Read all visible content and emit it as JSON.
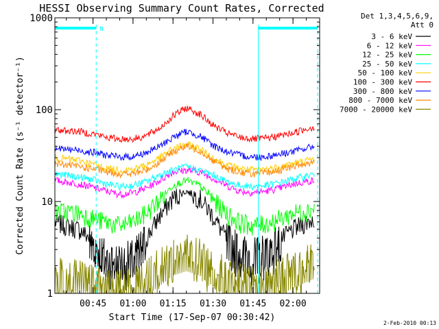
{
  "chart_data": {
    "type": "line",
    "title": "HESSI Observing Summary Count Rates, Corrected",
    "xlabel": "Start Time (17-Sep-07 00:30:42)",
    "ylabel": "Corrected Count Rate (s⁻¹ detector⁻¹)",
    "x_ticks": [
      "00:45",
      "01:00",
      "01:15",
      "01:30",
      "01:45",
      "02:00"
    ],
    "x_tick_minutes": [
      45,
      60,
      75,
      90,
      105,
      120
    ],
    "xlim_minutes": [
      30.7,
      130
    ],
    "y_scale": "log",
    "ylim": [
      1,
      1000
    ],
    "y_ticks": [
      "1",
      "10",
      "100",
      "1000"
    ],
    "y_tick_values": [
      1,
      10,
      100,
      1000
    ],
    "legend_header": [
      "Det 1,3,4,5,6,9,",
      "Att 0"
    ],
    "legend_position": "right",
    "series": [
      {
        "name": "3 - 6 keV",
        "color": "#000000",
        "x": [
          30.7,
          40,
          46,
          50,
          55,
          60,
          65,
          70,
          75,
          80,
          85,
          90,
          95,
          100,
          105,
          110,
          115,
          120,
          125,
          128
        ],
        "y": [
          6,
          5,
          3.5,
          2.5,
          2.3,
          2.5,
          4,
          7,
          11,
          13,
          11,
          7,
          4,
          3,
          2.6,
          3,
          3.8,
          5,
          6,
          6.5
        ]
      },
      {
        "name": "6 - 12 keV",
        "color": "#ff00ff",
        "x": [
          30.7,
          40,
          46,
          50,
          55,
          60,
          65,
          70,
          75,
          80,
          85,
          90,
          95,
          100,
          105,
          110,
          115,
          120,
          125,
          128
        ],
        "y": [
          17,
          15.5,
          14,
          13,
          12,
          12.5,
          14,
          17,
          21,
          22,
          21,
          18,
          15,
          13,
          12.5,
          13,
          14,
          15.5,
          16.5,
          17
        ]
      },
      {
        "name": "12 - 25 keV",
        "color": "#00ff00",
        "x": [
          30.7,
          40,
          46,
          50,
          55,
          60,
          65,
          70,
          75,
          80,
          85,
          90,
          95,
          100,
          105,
          110,
          115,
          120,
          125,
          128
        ],
        "y": [
          8,
          7.5,
          6.5,
          6,
          5.5,
          6,
          7.5,
          10.5,
          15,
          17,
          15,
          10.5,
          7.5,
          6,
          5.5,
          5.8,
          6.5,
          7.5,
          8,
          8.5
        ]
      },
      {
        "name": "25 - 50 keV",
        "color": "#00ffff",
        "x": [
          30.7,
          40,
          46,
          50,
          55,
          60,
          65,
          70,
          75,
          80,
          85,
          90,
          95,
          100,
          105,
          110,
          115,
          120,
          125,
          128
        ],
        "y": [
          20,
          18.5,
          17,
          15.5,
          14.5,
          15,
          16.5,
          19.5,
          22,
          24,
          22,
          19.5,
          16.5,
          15,
          14.5,
          15,
          16,
          17.5,
          19,
          20
        ]
      },
      {
        "name": "50 - 100 keV",
        "color": "#ffcc00",
        "x": [
          30.7,
          40,
          46,
          50,
          55,
          60,
          65,
          70,
          75,
          80,
          85,
          90,
          95,
          100,
          105,
          110,
          115,
          120,
          125,
          128
        ],
        "y": [
          30,
          28,
          25,
          23,
          22,
          22.5,
          25,
          30,
          38,
          42,
          38,
          30,
          25,
          23,
          22,
          22.5,
          24,
          26,
          28,
          29
        ]
      },
      {
        "name": "100 - 300 keV",
        "color": "#ff0000",
        "x": [
          30.7,
          40,
          46,
          50,
          55,
          60,
          65,
          70,
          75,
          80,
          85,
          90,
          95,
          100,
          105,
          110,
          115,
          120,
          125,
          128
        ],
        "y": [
          60,
          58,
          54,
          50,
          48,
          48,
          52,
          63,
          85,
          105,
          90,
          68,
          56,
          50,
          48,
          49,
          52,
          56,
          62,
          65
        ]
      },
      {
        "name": "300 - 800 keV",
        "color": "#0000ff",
        "x": [
          30.7,
          40,
          46,
          50,
          55,
          60,
          65,
          70,
          75,
          80,
          85,
          90,
          95,
          100,
          105,
          110,
          115,
          120,
          125,
          128
        ],
        "y": [
          38,
          36,
          34,
          32,
          30.5,
          31,
          34,
          40,
          50,
          58,
          52,
          41,
          35,
          32,
          30.5,
          31,
          33,
          35,
          38,
          40
        ]
      },
      {
        "name": "800 - 7000 keV",
        "color": "#ff8800",
        "x": [
          30.7,
          40,
          46,
          50,
          55,
          60,
          65,
          70,
          75,
          80,
          85,
          90,
          95,
          100,
          105,
          110,
          115,
          120,
          125,
          128
        ],
        "y": [
          26,
          24,
          22.5,
          21,
          20,
          20,
          22,
          27,
          35,
          40,
          36,
          28,
          23,
          21,
          20,
          20.5,
          22,
          24,
          26,
          27
        ]
      },
      {
        "name": "7000 - 20000 keV",
        "color": "#888800",
        "x": [
          30.7,
          40,
          46,
          50,
          55,
          60,
          65,
          70,
          75,
          80,
          85,
          90,
          95,
          100,
          105,
          110,
          115,
          120,
          125,
          128
        ],
        "y": [
          1.6,
          1.5,
          1.3,
          1.2,
          1.2,
          1.3,
          1.6,
          2.0,
          2.6,
          2.9,
          2.6,
          2.0,
          1.6,
          1.4,
          1.3,
          1.4,
          1.6,
          1.9,
          2.2,
          2.4
        ]
      }
    ],
    "annotations": [
      {
        "label": "N",
        "color": "#00ffff"
      }
    ],
    "timestamp": "2-Feb-2010 00:13"
  },
  "colors": {
    "background": "#ffffff",
    "axes": "#000000",
    "marker": "#00ffff"
  }
}
